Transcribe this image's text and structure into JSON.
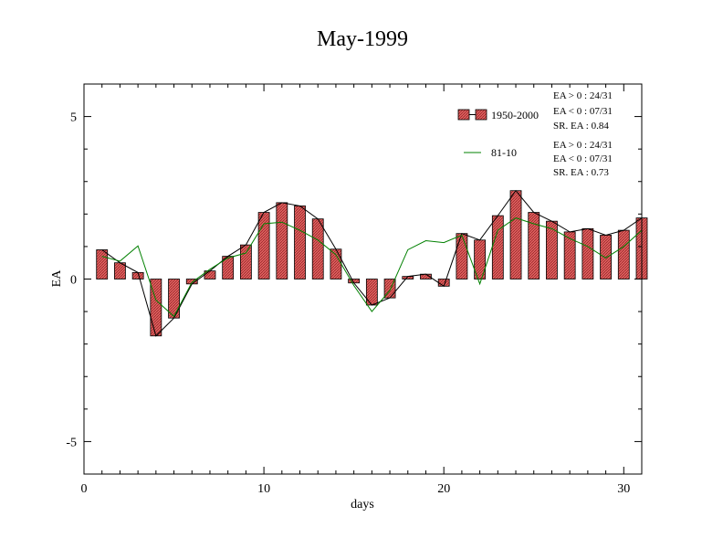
{
  "chart_data": {
    "type": "bar",
    "title": "May-1999",
    "xlabel": "days",
    "ylabel": "EA",
    "xlim": [
      0,
      31
    ],
    "ylim": [
      -6,
      6
    ],
    "x_ticks": [
      0,
      10,
      20,
      30
    ],
    "y_ticks": [
      -5,
      0,
      5
    ],
    "x_tick_labels": [
      "0",
      "10",
      "20",
      "30"
    ],
    "y_tick_labels": [
      "-5",
      "0",
      "5"
    ],
    "legend_position": "top-right",
    "colors": {
      "bar_fill": "#e06060",
      "bar_hatch": "#8a1f1f",
      "bar_edge": "#000000",
      "line_black": "#000000",
      "line_green": "#008000"
    },
    "x": [
      1,
      2,
      3,
      4,
      5,
      6,
      7,
      8,
      9,
      10,
      11,
      12,
      13,
      14,
      15,
      16,
      17,
      18,
      19,
      20,
      21,
      22,
      23,
      24,
      25,
      26,
      27,
      28,
      29,
      30,
      31
    ],
    "series": [
      {
        "name": "1950-2000",
        "style": "bar+line",
        "values": [
          0.9,
          0.5,
          0.2,
          -1.75,
          -1.2,
          -0.15,
          0.25,
          0.7,
          1.05,
          2.05,
          2.35,
          2.25,
          1.85,
          0.92,
          -0.12,
          -0.8,
          -0.58,
          0.08,
          0.15,
          -0.22,
          1.4,
          1.2,
          1.95,
          2.72,
          2.05,
          1.78,
          1.45,
          1.55,
          1.35,
          1.5,
          1.88
        ],
        "stats": {
          "pos_label": "EA > 0 : 24/31",
          "neg_label": "EA < 0 : 07/31",
          "sr_label": "SR. EA :  0.84"
        }
      },
      {
        "name": "81-10",
        "style": "line",
        "values": [
          0.7,
          0.55,
          1.02,
          -0.65,
          -1.15,
          -0.1,
          0.3,
          0.65,
          0.8,
          1.7,
          1.75,
          1.5,
          1.2,
          0.75,
          -0.2,
          -1.0,
          -0.35,
          0.9,
          1.18,
          1.12,
          1.35,
          -0.15,
          1.5,
          1.88,
          1.7,
          1.55,
          1.25,
          1.0,
          0.65,
          1.0,
          1.5
        ],
        "stats": {
          "pos_label": "EA > 0 : 24/31",
          "neg_label": "EA < 0 : 07/31",
          "sr_label": "SR. EA :  0.73"
        }
      }
    ]
  }
}
